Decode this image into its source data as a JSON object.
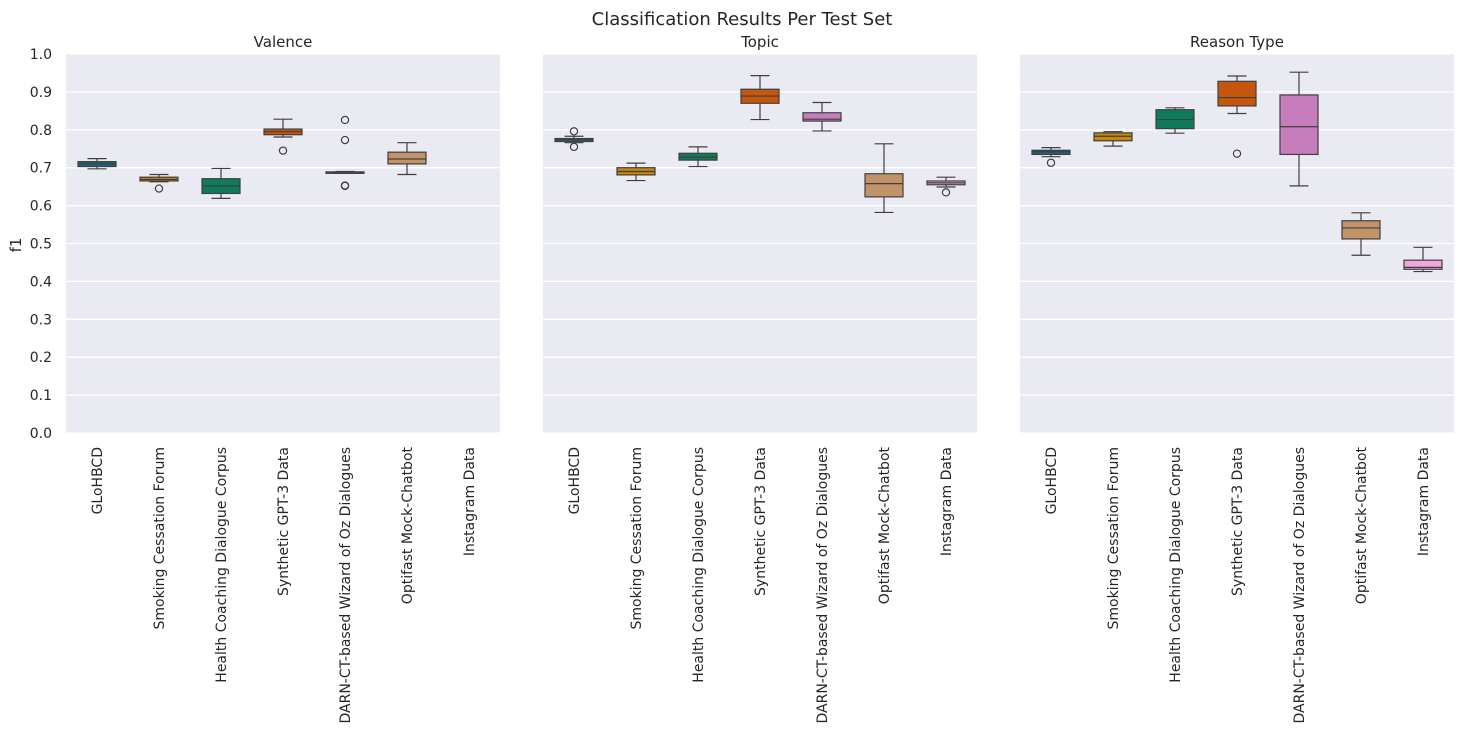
{
  "chart_data": {
    "type": "box",
    "title": "Classification Results Per Test Set",
    "ylabel": "f1",
    "ylim": [
      0,
      1.0
    ],
    "yticks": [
      "0.0",
      "0.1",
      "0.2",
      "0.3",
      "0.4",
      "0.5",
      "0.6",
      "0.7",
      "0.8",
      "0.9",
      "1.0"
    ],
    "grid": true,
    "categories": [
      "GLoHBCD",
      "Smoking Cessation Forum",
      "Health Coaching Dialogue Corpus",
      "Synthetic GPT-3 Data",
      "DARN-CT-based Wizard of Oz Dialogues",
      "Optifast Mock-Chatbot",
      "Instagram Data"
    ],
    "colors": [
      "#1a6685",
      "#c8860a",
      "#0e7c5a",
      "#c4570d",
      "#c77dbb",
      "#c29268",
      "#f0a8dc"
    ],
    "panels": [
      {
        "title": "Valence",
        "boxes": [
          {
            "min": 0.697,
            "q1": 0.703,
            "median": 0.71,
            "q3": 0.716,
            "max": 0.724,
            "outliers": []
          },
          {
            "min": 0.663,
            "q1": 0.665,
            "median": 0.669,
            "q3": 0.675,
            "max": 0.682,
            "outliers": [
              0.645
            ]
          },
          {
            "min": 0.619,
            "q1": 0.632,
            "median": 0.652,
            "q3": 0.671,
            "max": 0.698,
            "outliers": []
          },
          {
            "min": 0.781,
            "q1": 0.787,
            "median": 0.795,
            "q3": 0.802,
            "max": 0.828,
            "outliers": [
              0.745
            ]
          },
          {
            "min": 0.687,
            "q1": 0.687,
            "median": 0.688,
            "q3": 0.689,
            "max": 0.69,
            "outliers": [
              0.652,
              0.653,
              0.773,
              0.826
            ]
          },
          {
            "min": 0.682,
            "q1": 0.71,
            "median": 0.723,
            "q3": 0.741,
            "max": 0.766,
            "outliers": []
          },
          null
        ]
      },
      {
        "title": "Topic",
        "boxes": [
          {
            "min": 0.766,
            "q1": 0.769,
            "median": 0.774,
            "q3": 0.777,
            "max": 0.783,
            "outliers": [
              0.755,
              0.796
            ]
          },
          {
            "min": 0.666,
            "q1": 0.681,
            "median": 0.69,
            "q3": 0.7,
            "max": 0.712,
            "outliers": []
          },
          {
            "min": 0.703,
            "q1": 0.72,
            "median": 0.728,
            "q3": 0.738,
            "max": 0.755,
            "outliers": []
          },
          {
            "min": 0.827,
            "q1": 0.87,
            "median": 0.889,
            "q3": 0.907,
            "max": 0.943,
            "outliers": []
          },
          {
            "min": 0.797,
            "q1": 0.823,
            "median": 0.828,
            "q3": 0.845,
            "max": 0.872,
            "outliers": []
          },
          {
            "min": 0.582,
            "q1": 0.623,
            "median": 0.658,
            "q3": 0.684,
            "max": 0.763,
            "outliers": []
          },
          {
            "min": 0.649,
            "q1": 0.655,
            "median": 0.66,
            "q3": 0.665,
            "max": 0.675,
            "outliers": [
              0.635
            ]
          }
        ]
      },
      {
        "title": "Reason Type",
        "boxes": [
          {
            "min": 0.729,
            "q1": 0.735,
            "median": 0.742,
            "q3": 0.746,
            "max": 0.753,
            "outliers": [
              0.713
            ]
          },
          {
            "min": 0.757,
            "q1": 0.771,
            "median": 0.783,
            "q3": 0.792,
            "max": 0.795,
            "outliers": []
          },
          {
            "min": 0.791,
            "q1": 0.803,
            "median": 0.827,
            "q3": 0.853,
            "max": 0.858,
            "outliers": []
          },
          {
            "min": 0.843,
            "q1": 0.863,
            "median": 0.885,
            "q3": 0.928,
            "max": 0.942,
            "outliers": [
              0.737
            ]
          },
          {
            "min": 0.652,
            "q1": 0.735,
            "median": 0.808,
            "q3": 0.892,
            "max": 0.952,
            "outliers": []
          },
          {
            "min": 0.469,
            "q1": 0.512,
            "median": 0.541,
            "q3": 0.56,
            "max": 0.581,
            "outliers": []
          },
          {
            "min": 0.426,
            "q1": 0.432,
            "median": 0.437,
            "q3": 0.456,
            "max": 0.49,
            "outliers": []
          }
        ]
      }
    ]
  }
}
